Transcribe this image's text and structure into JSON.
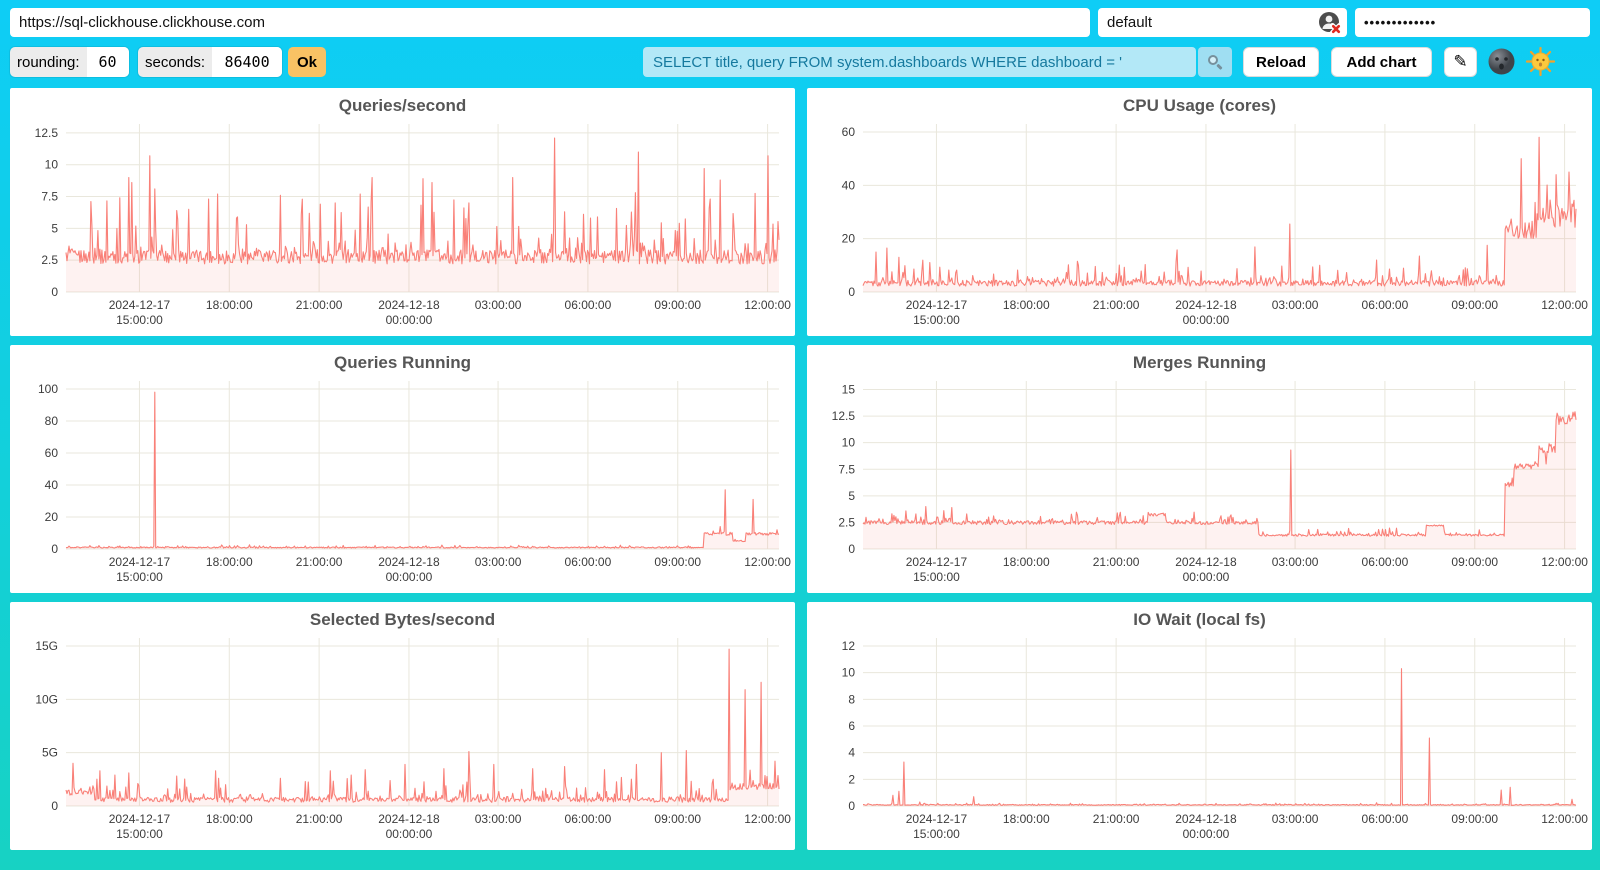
{
  "toolbar": {
    "url_value": "https://sql-clickhouse.clickhouse.com",
    "user_value": "default",
    "password_value": "•••••••••••••",
    "rounding_label": "rounding:",
    "rounding_value": "60",
    "seconds_label": "seconds:",
    "seconds_value": "86400",
    "ok_label": "Ok",
    "query_value": "SELECT title, query FROM system.dashboards WHERE dashboard = '",
    "reload_label": "Reload",
    "add_chart_label": "Add chart",
    "edit_glyph": "✎"
  },
  "icons": {
    "user_status": "user-silhouette-with-red-x",
    "search": "magnifier",
    "theme_dark": "new-moon-face",
    "theme_light": "sun-face"
  },
  "colors": {
    "background_top": "#0ecdf6",
    "background_bottom": "#17d2c3",
    "card": "#ffffff",
    "line": "#f98078",
    "area_fill": "rgba(249,128,120,0.10)",
    "grid": "#e9e7dc",
    "axis_text": "#3c3c3c",
    "title_text": "#565656",
    "ok_button": "#f9c264",
    "query_bg": "#b3e8f7",
    "query_text": "#15799e"
  },
  "chart_data": [
    {
      "type": "line",
      "title": "Queries/second",
      "seed": 1,
      "y_max": 13.2,
      "y_ticks": [
        {
          "v": 0,
          "label": "0"
        },
        {
          "v": 2.5,
          "label": "2.5"
        },
        {
          "v": 5,
          "label": "5"
        },
        {
          "v": 7.5,
          "label": "7.5"
        },
        {
          "v": 10,
          "label": "10"
        },
        {
          "v": 12.5,
          "label": "12.5"
        }
      ],
      "x_ticks": {
        "fracs": [
          0.103,
          0.229,
          0.355,
          0.481,
          0.606,
          0.732,
          0.858,
          0.984
        ],
        "labels": [
          [
            "2024-12-17",
            "15:00:00"
          ],
          [
            "18:00:00"
          ],
          [
            "21:00:00"
          ],
          [
            "2024-12-18",
            "00:00:00"
          ],
          [
            "03:00:00"
          ],
          [
            "06:00:00"
          ],
          [
            "09:00:00"
          ],
          [
            "12:00:00"
          ]
        ]
      },
      "baseline_segments": [
        [
          0,
          1,
          2.2,
          1.1,
          4.8
        ]
      ],
      "spikes": [
        [
          0.035,
          7.1
        ],
        [
          0.075,
          7.4
        ],
        [
          0.088,
          9.0
        ],
        [
          0.093,
          8.6
        ],
        [
          0.118,
          10.7
        ],
        [
          0.125,
          8.1
        ],
        [
          0.155,
          6.4
        ],
        [
          0.2,
          7.3
        ],
        [
          0.213,
          7.7
        ],
        [
          0.24,
          5.9
        ],
        [
          0.3,
          7.6
        ],
        [
          0.33,
          6.1
        ],
        [
          0.356,
          6.9
        ],
        [
          0.378,
          7.0
        ],
        [
          0.43,
          9.0
        ],
        [
          0.5,
          8.9
        ],
        [
          0.513,
          8.6
        ],
        [
          0.565,
          7.0
        ],
        [
          0.627,
          9.0
        ],
        [
          0.685,
          12.1
        ],
        [
          0.7,
          6.3
        ],
        [
          0.745,
          5.9
        ],
        [
          0.798,
          7.8
        ],
        [
          0.803,
          11.0
        ],
        [
          0.86,
          5.4
        ],
        [
          0.895,
          9.7
        ],
        [
          0.903,
          7.3
        ],
        [
          0.917,
          8.8
        ],
        [
          0.985,
          10.7
        ]
      ]
    },
    {
      "type": "line",
      "title": "CPU Usage (cores)",
      "seed": 2,
      "y_max": 63,
      "y_ticks": [
        {
          "v": 0,
          "label": "0"
        },
        {
          "v": 20,
          "label": "20"
        },
        {
          "v": 40,
          "label": "40"
        },
        {
          "v": 60,
          "label": "60"
        }
      ],
      "x_ticks": {
        "fracs": [
          0.103,
          0.229,
          0.355,
          0.481,
          0.606,
          0.732,
          0.858,
          0.984
        ],
        "labels": [
          [
            "2024-12-17",
            "15:00:00"
          ],
          [
            "18:00:00"
          ],
          [
            "21:00:00"
          ],
          [
            "2024-12-18",
            "00:00:00"
          ],
          [
            "03:00:00"
          ],
          [
            "06:00:00"
          ],
          [
            "09:00:00"
          ],
          [
            "12:00:00"
          ]
        ]
      },
      "baseline_segments": [
        [
          0,
          0.9,
          2.2,
          2.2,
          8
        ],
        [
          0.9,
          0.945,
          20,
          6,
          10
        ],
        [
          0.945,
          1,
          24,
          8,
          12
        ]
      ],
      "spikes": [
        [
          0.018,
          15
        ],
        [
          0.033,
          16.5
        ],
        [
          0.05,
          13
        ],
        [
          0.3,
          11.5
        ],
        [
          0.44,
          15.8
        ],
        [
          0.55,
          16.9
        ],
        [
          0.598,
          25.5
        ],
        [
          0.64,
          10
        ],
        [
          0.72,
          12
        ],
        [
          0.78,
          13.5
        ],
        [
          0.875,
          17.5
        ],
        [
          0.923,
          50
        ],
        [
          0.948,
          58
        ],
        [
          0.972,
          44
        ],
        [
          0.99,
          45
        ]
      ]
    },
    {
      "type": "line",
      "title": "Queries Running",
      "seed": 3,
      "y_max": 105,
      "y_ticks": [
        {
          "v": 0,
          "label": "0"
        },
        {
          "v": 20,
          "label": "20"
        },
        {
          "v": 40,
          "label": "40"
        },
        {
          "v": 60,
          "label": "60"
        },
        {
          "v": 80,
          "label": "80"
        },
        {
          "v": 100,
          "label": "100"
        }
      ],
      "x_ticks": {
        "fracs": [
          0.103,
          0.229,
          0.355,
          0.481,
          0.606,
          0.732,
          0.858,
          0.984
        ],
        "labels": [
          [
            "2024-12-17",
            "15:00:00"
          ],
          [
            "18:00:00"
          ],
          [
            "21:00:00"
          ],
          [
            "2024-12-18",
            "00:00:00"
          ],
          [
            "03:00:00"
          ],
          [
            "06:00:00"
          ],
          [
            "09:00:00"
          ],
          [
            "12:00:00"
          ]
        ]
      },
      "baseline_segments": [
        [
          0,
          0.895,
          0.6,
          0.6,
          1.5
        ],
        [
          0.895,
          0.935,
          8.5,
          1.8,
          2
        ],
        [
          0.935,
          0.953,
          4.5,
          1,
          1
        ],
        [
          0.953,
          1,
          8.5,
          1.8,
          2
        ]
      ],
      "spikes": [
        [
          0.125,
          98
        ],
        [
          0.917,
          14
        ],
        [
          0.925,
          37
        ],
        [
          0.963,
          31
        ],
        [
          0.997,
          12
        ]
      ]
    },
    {
      "type": "line",
      "title": "Merges Running",
      "seed": 4,
      "y_max": 15.8,
      "y_ticks": [
        {
          "v": 0,
          "label": "0"
        },
        {
          "v": 2.5,
          "label": "2.5"
        },
        {
          "v": 5,
          "label": "5"
        },
        {
          "v": 7.5,
          "label": "7.5"
        },
        {
          "v": 10,
          "label": "10"
        },
        {
          "v": 12.5,
          "label": "12.5"
        },
        {
          "v": 15,
          "label": "15"
        }
      ],
      "x_ticks": {
        "fracs": [
          0.103,
          0.229,
          0.355,
          0.481,
          0.606,
          0.732,
          0.858,
          0.984
        ],
        "labels": [
          [
            "2024-12-17",
            "15:00:00"
          ],
          [
            "18:00:00"
          ],
          [
            "21:00:00"
          ],
          [
            "2024-12-18",
            "00:00:00"
          ],
          [
            "03:00:00"
          ],
          [
            "06:00:00"
          ],
          [
            "09:00:00"
          ],
          [
            "12:00:00"
          ]
        ]
      },
      "baseline_segments": [
        [
          0,
          0.4,
          2.3,
          0.35,
          1.1
        ],
        [
          0.4,
          0.425,
          3.1,
          0.3,
          0.4
        ],
        [
          0.425,
          0.555,
          2.3,
          0.3,
          0.9
        ],
        [
          0.555,
          0.79,
          1.2,
          0.2,
          0.7
        ],
        [
          0.79,
          0.815,
          2.15,
          0.1,
          0.1
        ],
        [
          0.815,
          0.9,
          1.2,
          0.2,
          0.6
        ],
        [
          0.9,
          0.913,
          5.8,
          0.8,
          0.5
        ],
        [
          0.913,
          0.947,
          7.5,
          0.5,
          0.5
        ],
        [
          0.947,
          0.972,
          9.0,
          0.9,
          0.8
        ],
        [
          0.972,
          1,
          11.6,
          0.9,
          0.8
        ]
      ],
      "spikes": [
        [
          0.088,
          4.0
        ],
        [
          0.113,
          3.6
        ],
        [
          0.124,
          3.9
        ],
        [
          0.145,
          3.3
        ],
        [
          0.3,
          3.2
        ],
        [
          0.6,
          9.3
        ],
        [
          0.958,
          8.0
        ],
        [
          0.99,
          12.6
        ],
        [
          0.998,
          12.9
        ]
      ]
    },
    {
      "type": "line",
      "title": "Selected Bytes/second",
      "seed": 5,
      "y_max": 15.75,
      "y_ticks": [
        {
          "v": 0,
          "label": "0"
        },
        {
          "v": 5,
          "label": "5G"
        },
        {
          "v": 10,
          "label": "10G"
        },
        {
          "v": 15,
          "label": "15G"
        }
      ],
      "x_ticks": {
        "fracs": [
          0.103,
          0.229,
          0.355,
          0.481,
          0.606,
          0.732,
          0.858,
          0.984
        ],
        "labels": [
          [
            "2024-12-17",
            "15:00:00"
          ],
          [
            "18:00:00"
          ],
          [
            "21:00:00"
          ],
          [
            "2024-12-18",
            "00:00:00"
          ],
          [
            "03:00:00"
          ],
          [
            "06:00:00"
          ],
          [
            "09:00:00"
          ],
          [
            "12:00:00"
          ]
        ]
      },
      "baseline_segments": [
        [
          0,
          0.04,
          1.0,
          0.8,
          1.8
        ],
        [
          0.04,
          0.93,
          0.35,
          0.45,
          2.0
        ],
        [
          0.93,
          1,
          1.5,
          0.6,
          1.6
        ]
      ],
      "spikes": [
        [
          0.01,
          4.0
        ],
        [
          0.048,
          3.3
        ],
        [
          0.068,
          2.9
        ],
        [
          0.088,
          3.1
        ],
        [
          0.155,
          2.8
        ],
        [
          0.21,
          3.3
        ],
        [
          0.3,
          2.6
        ],
        [
          0.335,
          2.3
        ],
        [
          0.37,
          3.3
        ],
        [
          0.4,
          2.9
        ],
        [
          0.42,
          3.4
        ],
        [
          0.475,
          3.9
        ],
        [
          0.53,
          3.5
        ],
        [
          0.565,
          5.1
        ],
        [
          0.6,
          3.9
        ],
        [
          0.655,
          3.5
        ],
        [
          0.7,
          3.7
        ],
        [
          0.755,
          3.4
        ],
        [
          0.8,
          3.9
        ],
        [
          0.835,
          5.0
        ],
        [
          0.87,
          5.2
        ],
        [
          0.908,
          2.5
        ],
        [
          0.93,
          14.7
        ],
        [
          0.953,
          10.9
        ],
        [
          0.975,
          11.6
        ],
        [
          0.995,
          4.2
        ]
      ]
    },
    {
      "type": "line",
      "title": "IO Wait (local fs)",
      "seed": 6,
      "y_max": 12.6,
      "y_ticks": [
        {
          "v": 0,
          "label": "0"
        },
        {
          "v": 2,
          "label": "2"
        },
        {
          "v": 4,
          "label": "4"
        },
        {
          "v": 6,
          "label": "6"
        },
        {
          "v": 8,
          "label": "8"
        },
        {
          "v": 10,
          "label": "10"
        },
        {
          "v": 12,
          "label": "12"
        }
      ],
      "x_ticks": {
        "fracs": [
          0.103,
          0.229,
          0.355,
          0.481,
          0.606,
          0.732,
          0.858,
          0.984
        ],
        "labels": [
          [
            "2024-12-17",
            "15:00:00"
          ],
          [
            "18:00:00"
          ],
          [
            "21:00:00"
          ],
          [
            "2024-12-18",
            "00:00:00"
          ],
          [
            "03:00:00"
          ],
          [
            "06:00:00"
          ],
          [
            "09:00:00"
          ],
          [
            "12:00:00"
          ]
        ]
      },
      "baseline_segments": [
        [
          0,
          1,
          0.05,
          0.06,
          0.12
        ]
      ],
      "spikes": [
        [
          0.042,
          0.8
        ],
        [
          0.05,
          1.1
        ],
        [
          0.057,
          3.3
        ],
        [
          0.08,
          0.3
        ],
        [
          0.155,
          0.7
        ],
        [
          0.19,
          0.15
        ],
        [
          0.5,
          0.08
        ],
        [
          0.6,
          0.12
        ],
        [
          0.625,
          0.15
        ],
        [
          0.7,
          0.1
        ],
        [
          0.72,
          0.25
        ],
        [
          0.755,
          10.3
        ],
        [
          0.795,
          5.1
        ],
        [
          0.86,
          0.15
        ],
        [
          0.895,
          1.2
        ],
        [
          0.907,
          1.4
        ],
        [
          0.975,
          0.2
        ],
        [
          0.995,
          0.5
        ]
      ]
    }
  ]
}
